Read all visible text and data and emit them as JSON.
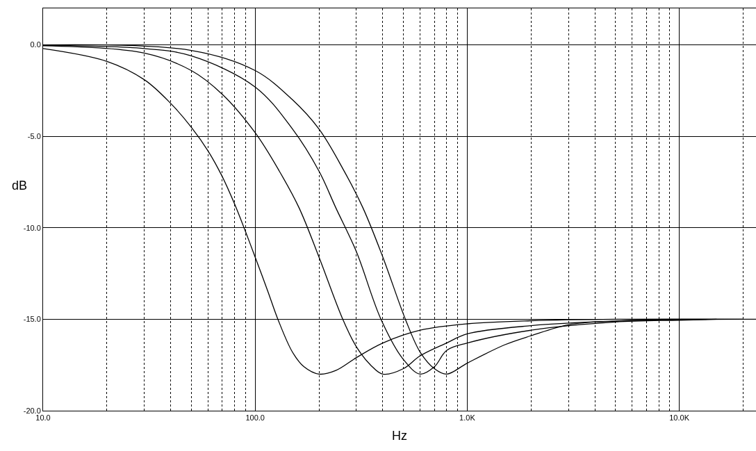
{
  "chart_data": {
    "type": "line",
    "xlabel": "Hz",
    "ylabel": "dB",
    "log": "x",
    "grid": true,
    "marker": "none",
    "line_style": "solid",
    "xlim": [
      10,
      23000
    ],
    "xticks": [
      {
        "value": 10,
        "label": "10.0"
      },
      {
        "value": 100,
        "label": "100.0"
      },
      {
        "value": 1000,
        "label": "1.0K"
      },
      {
        "value": 10000,
        "label": "10.0K"
      }
    ],
    "ylim": [
      -20,
      2
    ],
    "yticks": [
      {
        "value": -20,
        "label": "-20.0"
      },
      {
        "value": -15,
        "label": "-15.0"
      },
      {
        "value": -10,
        "label": "-10.0"
      },
      {
        "value": -5,
        "label": "-5.0"
      },
      {
        "value": 0,
        "label": "0.0"
      }
    ],
    "series": [
      {
        "color": "#000000",
        "x": [
          10,
          20,
          30,
          40,
          50,
          60,
          70,
          80,
          90,
          100,
          115,
          128,
          150,
          170,
          200,
          240,
          300,
          400,
          600,
          1000,
          2000,
          5000,
          23000
        ],
        "values": [
          -0.2,
          -0.9,
          -1.9,
          -3.2,
          -4.5,
          -5.8,
          -7.2,
          -8.7,
          -10.2,
          -11.6,
          -13.5,
          -15,
          -16.8,
          -17.6,
          -18,
          -17.8,
          -17.1,
          -16.3,
          -15.6,
          -15.25,
          -15.08,
          -15,
          -15
        ]
      },
      {
        "color": "#000000",
        "x": [
          10,
          30,
          50,
          70,
          100,
          130,
          161,
          200,
          259,
          300,
          350,
          400,
          500,
          600,
          800,
          1000,
          2000,
          5000,
          10000
        ],
        "values": [
          -0.05,
          -0.45,
          -1.4,
          -2.7,
          -4.8,
          -6.9,
          -8.9,
          -11.6,
          -15,
          -16.5,
          -17.5,
          -18,
          -17.7,
          -17,
          -16.3,
          -15.8,
          -15.35,
          -15.1,
          -15.02
        ]
      },
      {
        "color": "#000000",
        "x": [
          10,
          30,
          50,
          100,
          150,
          200,
          240,
          300,
          392,
          500,
          600,
          700,
          800,
          1000,
          2000,
          5000,
          10000,
          15000
        ],
        "values": [
          -0.02,
          -0.2,
          -0.6,
          -2.3,
          -4.6,
          -6.9,
          -8.9,
          -11.3,
          -15,
          -17.2,
          -18,
          -17.6,
          -16.7,
          -16.3,
          -15.6,
          -15.15,
          -15.05,
          -15
        ]
      },
      {
        "color": "#000000",
        "x": [
          10,
          50,
          100,
          150,
          200,
          260,
          322,
          400,
          511,
          600,
          700,
          800,
          1000,
          1500,
          2000,
          3000,
          5000,
          10000,
          20000
        ],
        "values": [
          0,
          -0.3,
          -1.4,
          -3,
          -4.6,
          -6.8,
          -8.9,
          -11.6,
          -15,
          -16.8,
          -17.7,
          -18,
          -17.4,
          -16.4,
          -15.9,
          -15.3,
          -15.1,
          -15.02,
          -15
        ]
      }
    ]
  }
}
